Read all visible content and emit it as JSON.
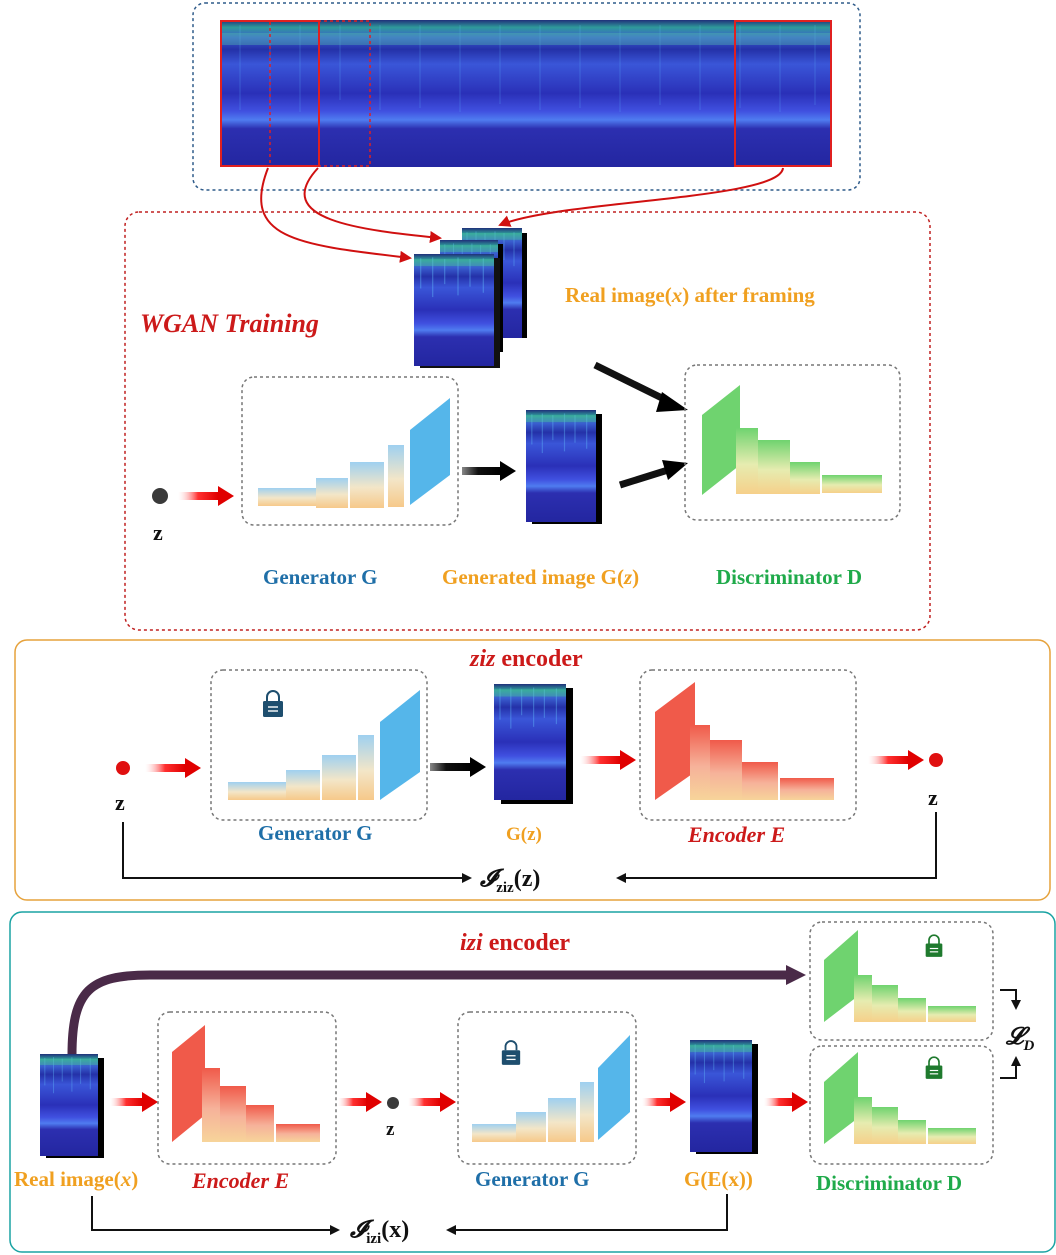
{
  "colors": {
    "blue_text": "#1f6fa8",
    "orange_text": "#f0a020",
    "green_text": "#1faa4a",
    "red_text": "#cc1a1a",
    "panel1_border": "#1f4e79",
    "panel2_border": "#c00000",
    "panel3_border": "#e6a23c",
    "panel4_border": "#1aa3a3"
  },
  "wgan": {
    "title": "WGAN Training",
    "real_label": "Real image(x) after framing",
    "real_label_prefix": "Real image(",
    "real_label_var": "x",
    "real_label_suffix": ") after framing",
    "z": "z",
    "generator_label": "Generator G",
    "generated_label_prefix": "Generated image G(",
    "generated_label_var": "z",
    "generated_label_suffix": ")",
    "discriminator_label": "Discriminator D"
  },
  "ziz": {
    "title_var": "ziz",
    "title_rest": " encoder",
    "z_in": "z",
    "z_out": "z",
    "generator_label": "Generator G",
    "gz_label": "G(z)",
    "encoder_label": "Encoder E",
    "loss_symbol": "𝓘",
    "loss_sub": "ziz",
    "loss_arg": "(z)"
  },
  "izi": {
    "title_var": "izi",
    "title_rest": " encoder",
    "real_label_prefix": "Real image(",
    "real_label_var": "x",
    "real_label_suffix": ")",
    "encoder_label": "Encoder E",
    "z": "z",
    "generator_label": "Generator G",
    "gex_label": "G(E(x))",
    "discriminator_label": "Discriminator D",
    "loss_symbol": "𝓘",
    "loss_sub": "izi",
    "loss_arg": "(x)",
    "ld_symbol": "𝓛",
    "ld_sub": "D"
  },
  "icons": [
    "lock-icon",
    "spectrogram-image",
    "arrow-icon"
  ]
}
